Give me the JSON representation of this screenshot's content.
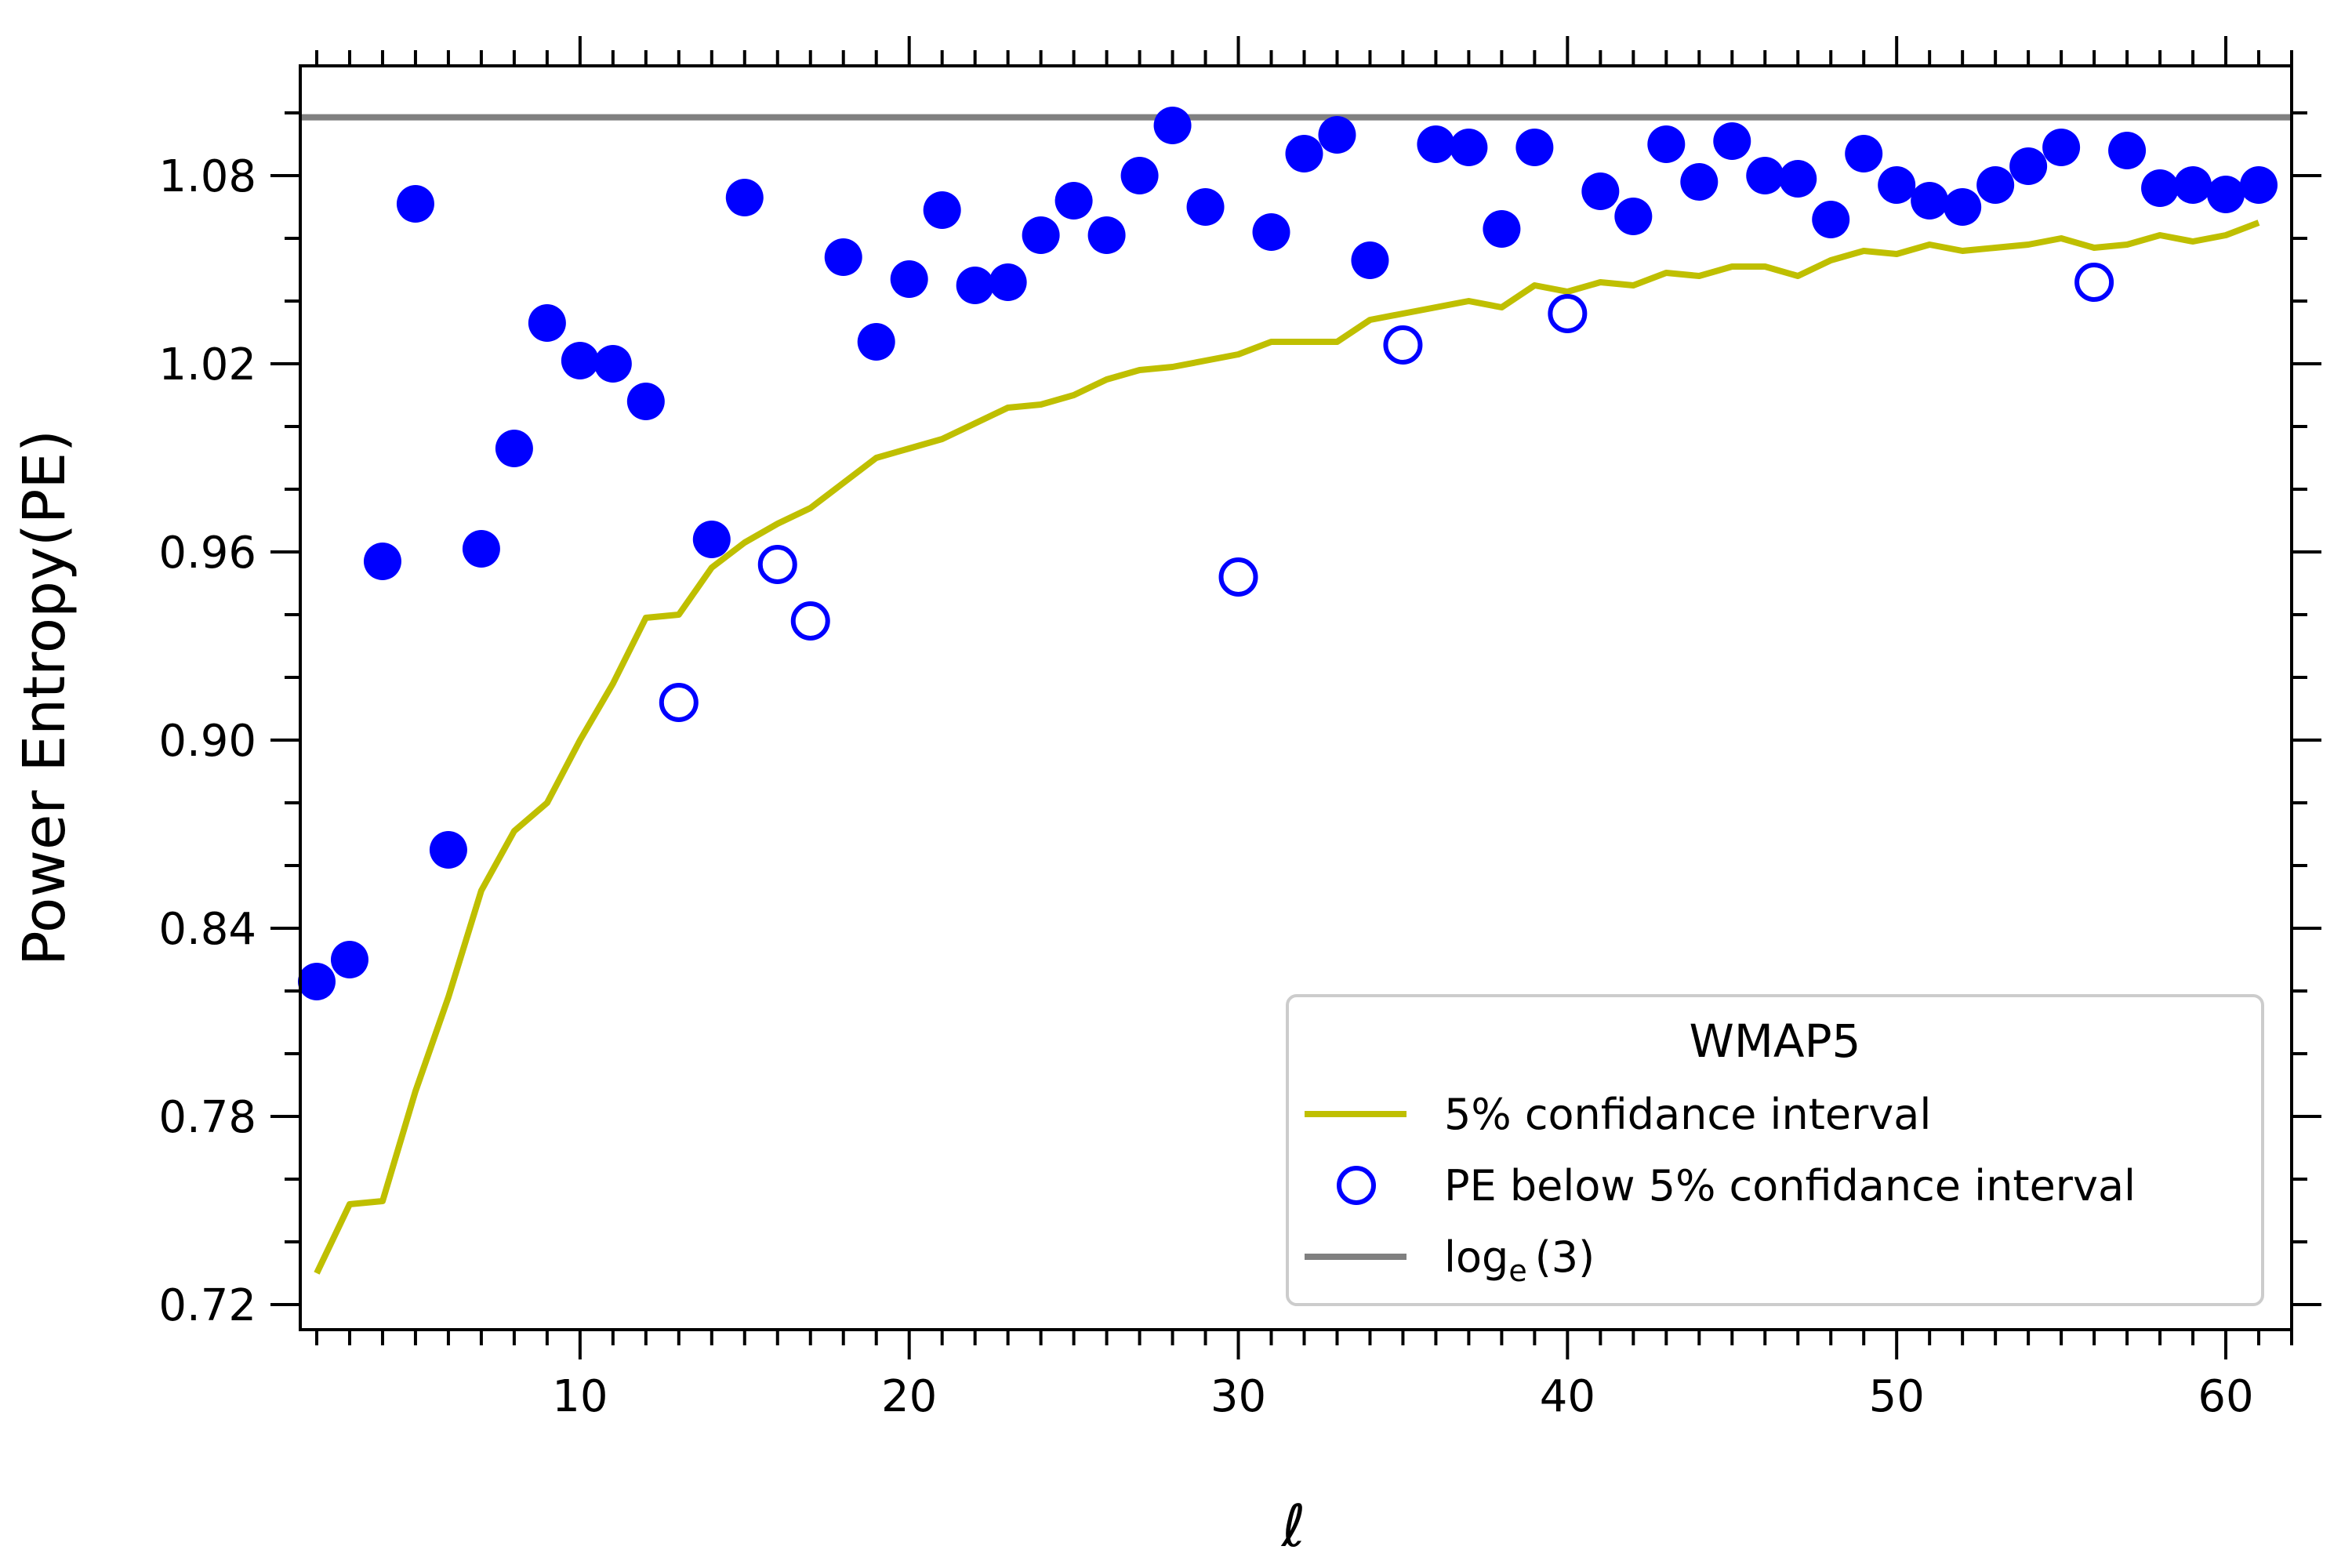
{
  "chart_data": {
    "type": "scatter",
    "title": "",
    "xlabel": "ℓ",
    "ylabel": "Power Entropy(PE)",
    "xlim": [
      1.5,
      62
    ],
    "ylim": [
      0.712,
      1.115
    ],
    "xticks": [
      10,
      20,
      30,
      40,
      50,
      60
    ],
    "xtick_labels": [
      "10",
      "20",
      "30",
      "40",
      "50",
      "60"
    ],
    "yticks": [
      0.72,
      0.78,
      0.84,
      0.9,
      0.96,
      1.02,
      1.08
    ],
    "ytick_labels": [
      "0.72",
      "0.78",
      "0.84",
      "0.90",
      "0.96",
      "1.02",
      "1.08"
    ],
    "grid": false,
    "legend": {
      "title": "WMAP5",
      "placement": "lower-right",
      "entries": [
        {
          "label": "5% confidance interval",
          "marker": "line",
          "color": "#bfbf00"
        },
        {
          "label": "PE below 5% confidance interval",
          "marker": "open-circle",
          "color": "#0000ff"
        },
        {
          "label_base": "log",
          "label_sub": "e",
          "label_rest": "(3)",
          "marker": "line",
          "color": "#808080"
        }
      ]
    },
    "series": [
      {
        "type": "line",
        "color": "#bfbf00",
        "x": [
          2,
          3,
          4,
          5,
          6,
          7,
          8,
          9,
          10,
          11,
          12,
          13,
          14,
          15,
          16,
          17,
          18,
          19,
          20,
          21,
          22,
          23,
          24,
          25,
          26,
          27,
          28,
          29,
          30,
          31,
          32,
          33,
          34,
          35,
          36,
          37,
          38,
          39,
          40,
          41,
          42,
          43,
          44,
          45,
          46,
          47,
          48,
          49,
          50,
          51,
          52,
          53,
          54,
          55,
          56,
          57,
          58,
          59,
          60,
          61
        ],
        "values": [
          0.73,
          0.752,
          0.753,
          0.788,
          0.818,
          0.852,
          0.871,
          0.88,
          0.9,
          0.918,
          0.939,
          0.94,
          0.955,
          0.963,
          0.969,
          0.974,
          0.982,
          0.99,
          0.993,
          0.996,
          1.001,
          1.006,
          1.007,
          1.01,
          1.015,
          1.018,
          1.019,
          1.021,
          1.023,
          1.027,
          1.027,
          1.027,
          1.034,
          1.036,
          1.038,
          1.04,
          1.038,
          1.045,
          1.043,
          1.046,
          1.045,
          1.049,
          1.048,
          1.051,
          1.051,
          1.048,
          1.053,
          1.056,
          1.055,
          1.058,
          1.056,
          1.057,
          1.058,
          1.06,
          1.057,
          1.058,
          1.061,
          1.059,
          1.061,
          1.065
        ]
      },
      {
        "type": "hline",
        "color": "#808080",
        "value": 1.0986
      },
      {
        "type": "scatter-filled",
        "color": "#0000ff",
        "x": [
          2,
          3,
          4,
          5,
          6,
          7,
          8,
          9,
          10,
          11,
          12,
          14,
          15,
          18,
          19,
          20,
          21,
          22,
          23,
          24,
          25,
          26,
          27,
          28,
          29,
          31,
          32,
          33,
          34,
          36,
          37,
          38,
          39,
          41,
          42,
          43,
          44,
          45,
          46,
          47,
          48,
          49,
          50,
          51,
          52,
          53,
          54,
          55,
          57,
          58,
          59,
          60,
          61
        ],
        "values": [
          0.823,
          0.83,
          0.957,
          1.071,
          0.865,
          0.961,
          0.993,
          1.033,
          1.021,
          1.02,
          1.008,
          0.964,
          1.073,
          1.054,
          1.027,
          1.047,
          1.069,
          1.045,
          1.046,
          1.061,
          1.072,
          1.061,
          1.08,
          1.096,
          1.07,
          1.062,
          1.087,
          1.093,
          1.053,
          1.09,
          1.089,
          1.063,
          1.089,
          1.075,
          1.067,
          1.09,
          1.078,
          1.091,
          1.08,
          1.079,
          1.066,
          1.087,
          1.077,
          1.072,
          1.07,
          1.077,
          1.083,
          1.089,
          1.088,
          1.076,
          1.077,
          1.074,
          1.077
        ]
      },
      {
        "type": "scatter-open",
        "color": "#0000ff",
        "x": [
          13,
          16,
          17,
          30,
          35,
          40,
          56
        ],
        "values": [
          0.912,
          0.956,
          0.938,
          0.952,
          1.026,
          1.036,
          1.046
        ]
      }
    ]
  }
}
